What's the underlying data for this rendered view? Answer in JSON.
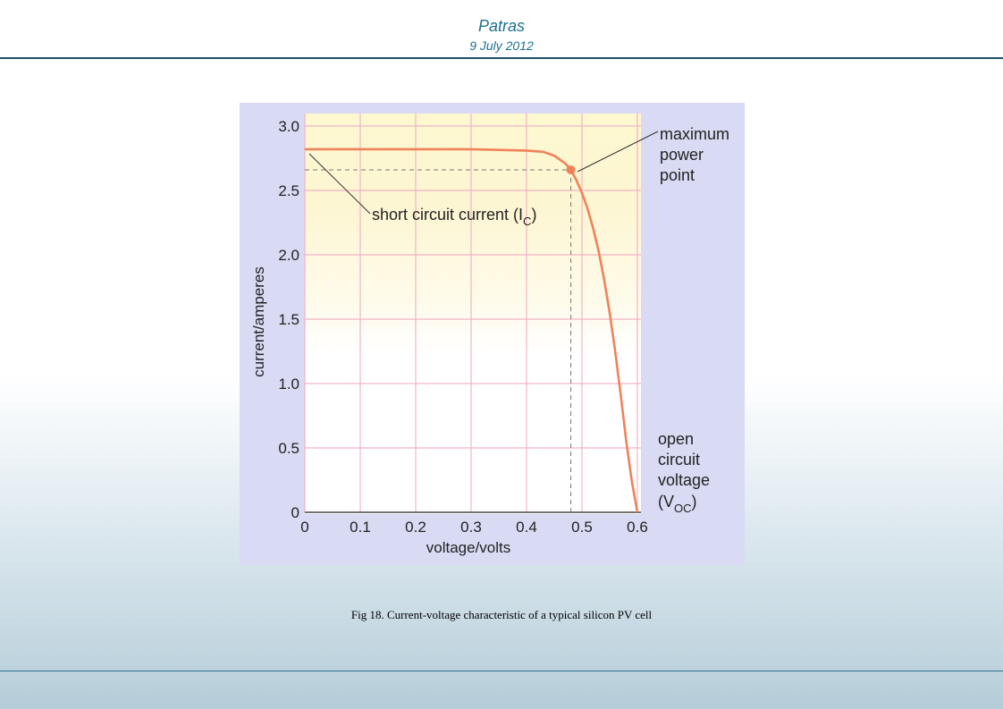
{
  "header": {
    "title": "Patras",
    "date": "9 July 2012"
  },
  "caption": "Fig 18. Current-voltage characteristic of a typical silicon PV cell",
  "colors": {
    "accent": "#1e6f8f",
    "panel_bg": "#d8dbf3",
    "plot_top": "#fdf8d0",
    "grid": "#f2b3c4",
    "curve": "#f0825a",
    "text": "#222222"
  },
  "chart_data": {
    "type": "line",
    "xlabel": "voltage/volts",
    "ylabel": "current/amperes",
    "xlim": [
      0,
      0.6
    ],
    "ylim": [
      0,
      3.0
    ],
    "x_ticks": [
      0,
      0.1,
      0.2,
      0.3,
      0.4,
      0.5,
      0.6
    ],
    "x_tick_labels": [
      "0",
      "0.1",
      "0.2",
      "0.3",
      "0.4",
      "0.5",
      "0.6"
    ],
    "y_ticks": [
      0,
      0.5,
      1.0,
      1.5,
      2.0,
      2.5,
      3.0
    ],
    "y_tick_labels": [
      "0",
      "0.5",
      "1.0",
      "1.5",
      "2.0",
      "2.5",
      "3.0"
    ],
    "grid": true,
    "series": [
      {
        "x": [
          0,
          0.1,
          0.2,
          0.3,
          0.4,
          0.43,
          0.45,
          0.47,
          0.48,
          0.49,
          0.5,
          0.51,
          0.52,
          0.53,
          0.54,
          0.55,
          0.56,
          0.57,
          0.58,
          0.59,
          0.6
        ],
        "y": [
          2.82,
          2.82,
          2.82,
          2.82,
          2.81,
          2.8,
          2.77,
          2.71,
          2.66,
          2.58,
          2.48,
          2.36,
          2.21,
          2.03,
          1.81,
          1.55,
          1.25,
          0.91,
          0.55,
          0.24,
          0
        ]
      }
    ],
    "max_power_point": {
      "x": 0.48,
      "y": 2.66
    },
    "annotations": {
      "short_circuit": {
        "text": "short circuit current (I",
        "sub": "C",
        "close": ")"
      },
      "max_power": {
        "lines": [
          "maximum",
          "power",
          "point"
        ]
      },
      "open_circuit": {
        "lines": [
          "open",
          "circuit",
          "voltage"
        ],
        "paren_open": "(V",
        "sub": "OC",
        "close": ")"
      }
    }
  }
}
